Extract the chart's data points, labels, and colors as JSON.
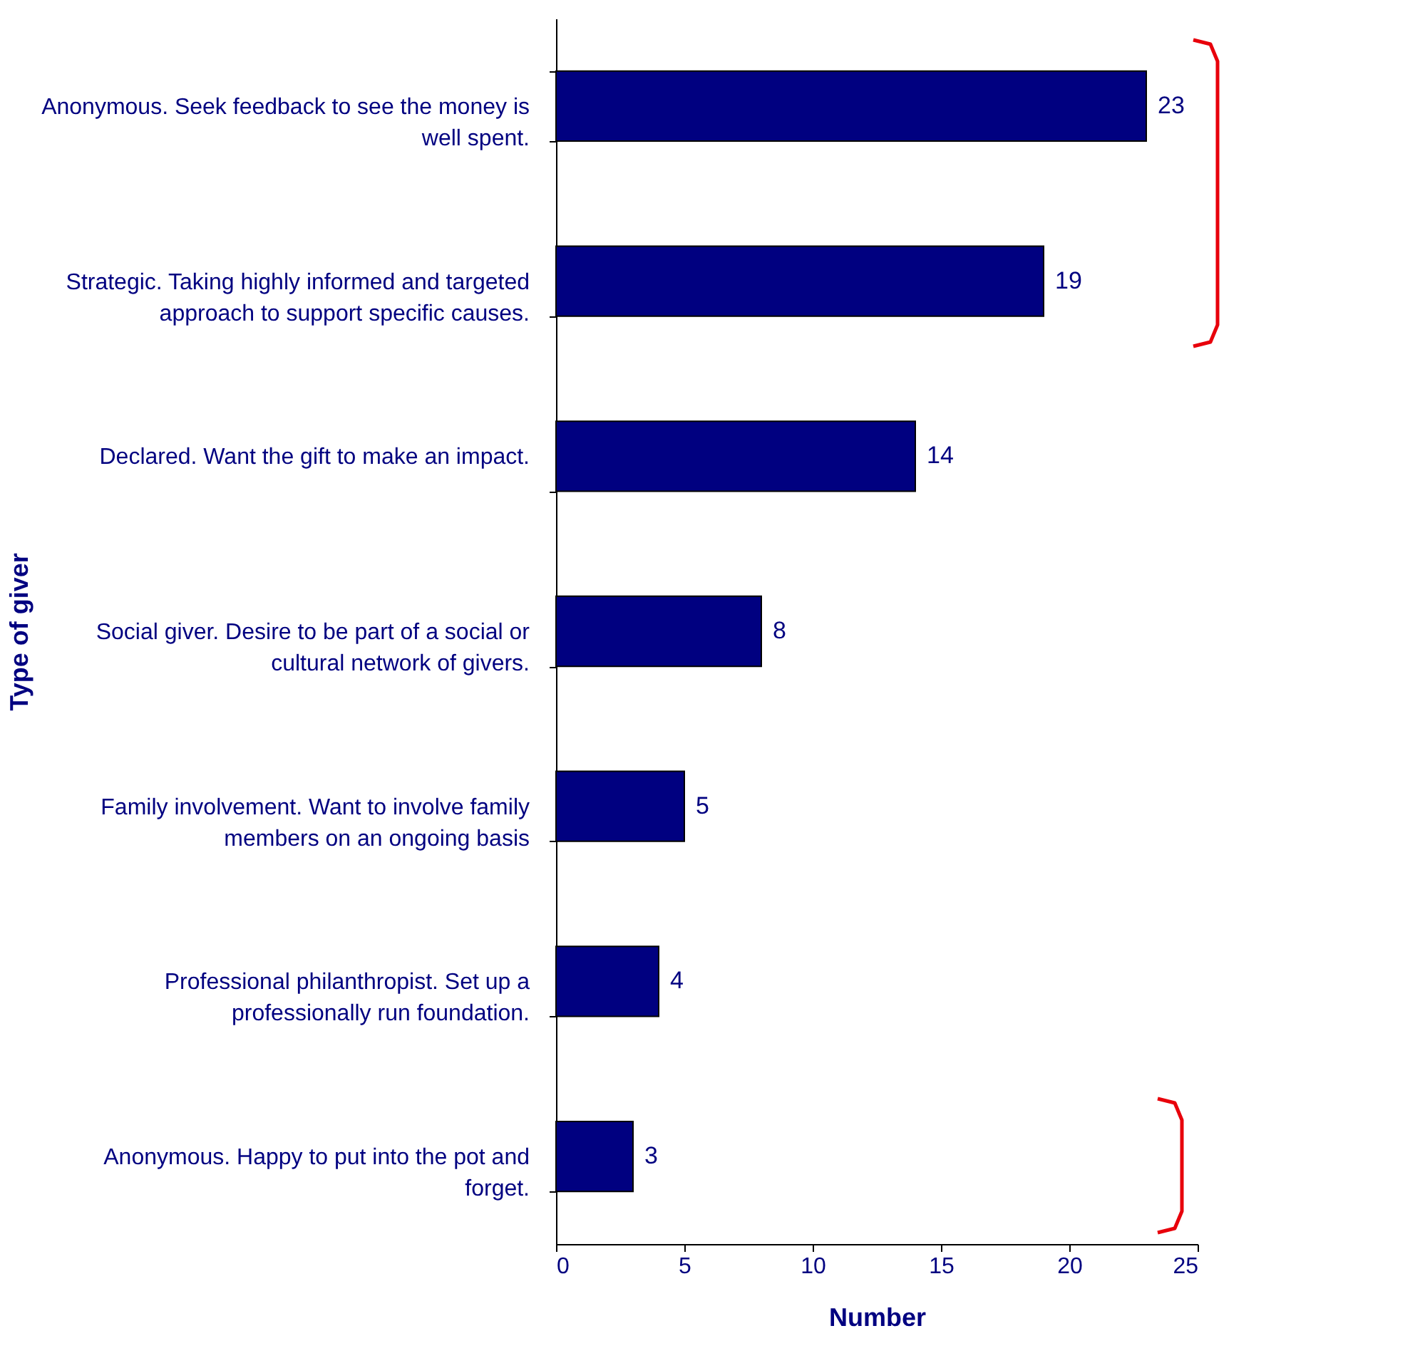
{
  "chart_data": {
    "type": "bar",
    "orientation": "horizontal",
    "xlabel": "Number",
    "ylabel": "Type of giver",
    "categories": [
      "Anonymous. Seek feedback to see the money is well spent.",
      "Strategic. Taking highly informed and targeted approach to support specific causes.",
      "Declared. Want the gift to make an impact.",
      "Social giver. Desire to be part of a social or cultural network of givers.",
      "Family involvement. Want to involve family members on an ongoing basis",
      "Professional philanthropist. Set up a professionally run foundation.",
      "Anonymous. Happy to put into the pot and forget."
    ],
    "values": [
      23,
      19,
      14,
      8,
      5,
      4,
      3
    ],
    "color": "#000080",
    "xlim": [
      0,
      25
    ],
    "xticks": [
      0,
      5,
      10,
      15,
      20,
      25
    ],
    "grid": false,
    "data_labels": true,
    "legend": false
  }
}
